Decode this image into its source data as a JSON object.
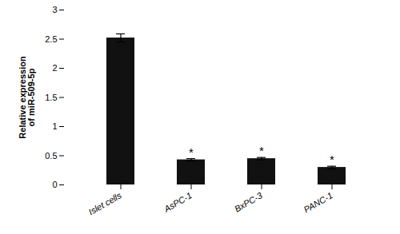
{
  "chart_data": {
    "type": "bar",
    "categories": [
      "Islet cells",
      "AsPC-1",
      "BxPC-3",
      "PANC-1"
    ],
    "values": [
      2.52,
      0.43,
      0.45,
      0.3
    ],
    "errors": [
      0.07,
      0.02,
      0.02,
      0.02
    ],
    "color": "#111111",
    "ylabel": "Relative expression\nof miR-509-5p",
    "ylim": [
      0,
      3
    ],
    "yticks": [
      0,
      0.5,
      1,
      1.5,
      2,
      2.5,
      3
    ],
    "annotations": [
      {
        "category": "AsPC-1",
        "text": "*"
      },
      {
        "category": "BxPC-3",
        "text": "*"
      },
      {
        "category": "PANC-1",
        "text": "*"
      }
    ],
    "grid": false
  }
}
